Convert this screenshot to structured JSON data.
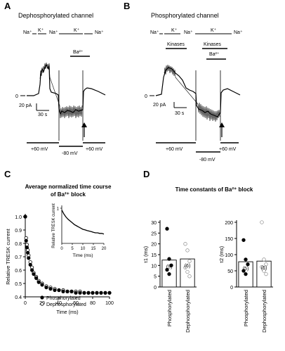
{
  "panels": {
    "A": {
      "letter": "A",
      "title": "Dephosphorylated channel",
      "solutions": [
        "Na⁺",
        "K⁺",
        "Na⁺",
        "K⁺",
        "Na⁺"
      ],
      "drug": "Ba²⁺",
      "zero": "0",
      "scale_current": "20 pA",
      "scale_time": "30 s",
      "voltages": [
        "+60 mV",
        "-80 mV",
        "+60 mV"
      ]
    },
    "B": {
      "letter": "B",
      "title": "Phosphorylated channel",
      "solutions": [
        "Na⁺",
        "K⁺",
        "Na⁺",
        "K⁺",
        "Na⁺"
      ],
      "treatments": [
        "Kinases",
        "Kinases",
        "Ba²⁺"
      ],
      "zero": "0",
      "scale_current": "20 pA",
      "scale_time": "30 s",
      "voltages": [
        "+60 mV",
        "-80 mV",
        "+60 mV"
      ]
    },
    "C": {
      "letter": "C"
    },
    "D": {
      "letter": "D"
    }
  },
  "chart_data": [
    {
      "type": "scatter",
      "panel": "C",
      "title": "Average normalized time course of Ba²⁺ block",
      "title_lines": [
        "Average normalized time course",
        "of Ba²⁺ block"
      ],
      "xlabel": "Time (ms)",
      "ylabel": "Relative TRESK current",
      "xlim": [
        0,
        100
      ],
      "ylim": [
        0.4,
        1.0
      ],
      "xticks": [
        "0",
        "20",
        "40",
        "60",
        "80",
        "100"
      ],
      "yticks": [
        "0.4",
        "0.5",
        "0.6",
        "0.7",
        "0.8",
        "0.9",
        "1.0"
      ],
      "legend": [
        "Phosphorylated",
        "Dephosphorylated"
      ],
      "legend_position": "bottom-right",
      "series": [
        {
          "name": "Phosphorylated",
          "marker": "filled",
          "x": [
            0,
            1,
            2,
            3,
            4,
            6,
            8,
            10,
            13,
            16,
            20,
            25,
            30,
            35,
            40,
            45,
            50,
            55,
            60,
            65,
            70,
            75,
            80,
            85,
            90,
            95,
            100
          ],
          "y": [
            1.0,
            0.82,
            0.77,
            0.73,
            0.69,
            0.64,
            0.6,
            0.57,
            0.54,
            0.51,
            0.49,
            0.47,
            0.46,
            0.45,
            0.45,
            0.44,
            0.44,
            0.44,
            0.43,
            0.43,
            0.43,
            0.43,
            0.43,
            0.43,
            0.43,
            0.43,
            0.43
          ]
        },
        {
          "name": "Dephosphorylated",
          "marker": "open",
          "x": [
            0,
            1,
            2,
            3,
            4,
            6,
            8,
            10,
            13,
            16,
            20,
            25,
            30,
            35,
            40,
            45,
            50,
            55,
            60,
            65,
            70,
            75,
            80,
            85,
            90,
            95,
            100
          ],
          "y": [
            1.0,
            0.84,
            0.79,
            0.75,
            0.71,
            0.66,
            0.62,
            0.58,
            0.55,
            0.52,
            0.5,
            0.48,
            0.47,
            0.46,
            0.45,
            0.45,
            0.44,
            0.44,
            0.44,
            0.44,
            0.43,
            0.43,
            0.43,
            0.43,
            0.43,
            0.43,
            0.43
          ]
        }
      ],
      "inset": {
        "type": "line",
        "xlabel": "Time (ms)",
        "ylabel": "Relative TRESK current",
        "xlim": [
          0,
          20
        ],
        "ylim": [
          0.4,
          1.0
        ],
        "xticks": [
          "0",
          "5",
          "10",
          "15",
          "20"
        ],
        "ytick_labels": [
          "1"
        ],
        "x": [
          0,
          1,
          2,
          3,
          4,
          5,
          6,
          7,
          8,
          9,
          10,
          11,
          12,
          13,
          14,
          15,
          16,
          17,
          18,
          19,
          20
        ],
        "y": [
          0.97,
          0.9,
          0.85,
          0.81,
          0.78,
          0.75,
          0.72,
          0.7,
          0.68,
          0.66,
          0.64,
          0.63,
          0.62,
          0.61,
          0.6,
          0.59,
          0.58,
          0.58,
          0.57,
          0.57,
          0.56
        ]
      }
    },
    {
      "type": "bar",
      "panel": "D",
      "title": "Time constants of Ba²⁺ block",
      "ylabel": "τ1 (ms)",
      "ylim": [
        0,
        30
      ],
      "yticks": [
        "0",
        "5",
        "10",
        "15",
        "20",
        "25",
        "30"
      ],
      "categories": [
        "Phosphorylated",
        "Dephosphorylated"
      ],
      "values": [
        12.5,
        13
      ],
      "n_labels": [
        "(5)",
        "(6)"
      ],
      "points": [
        [
          27,
          13,
          10,
          8,
          6
        ],
        [
          20,
          17,
          12,
          9,
          7,
          5
        ]
      ]
    },
    {
      "type": "bar",
      "panel": "D",
      "ylabel": "τ2 (ms)",
      "ylim": [
        0,
        200
      ],
      "yticks": [
        "0",
        "50",
        "100",
        "150",
        "200"
      ],
      "categories": [
        "Phosphorylated",
        "Dephosphorylated"
      ],
      "values": [
        78,
        80
      ],
      "n_labels": [
        "(5)",
        "(6)"
      ],
      "points": [
        [
          145,
          85,
          70,
          50,
          40
        ],
        [
          200,
          85,
          70,
          62,
          50,
          40
        ]
      ]
    }
  ]
}
